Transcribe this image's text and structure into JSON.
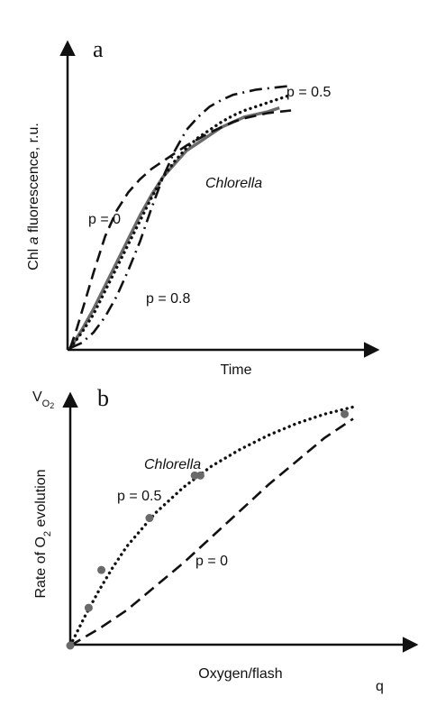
{
  "chart_data": [
    {
      "panel": "a",
      "type": "line",
      "xlabel": "Time",
      "ylabel": "Chl a fluorescence, r.u.",
      "ylabel_parts": [
        {
          "text": "Chl ",
          "style": "normal"
        },
        {
          "text": "a",
          "style": "italic"
        },
        {
          "text": " fluorescence, r.u.",
          "style": "normal"
        }
      ],
      "xlim": [
        0,
        10
      ],
      "ylim": [
        0,
        10
      ],
      "grid": false,
      "ticks": false,
      "series": [
        {
          "name": "Chlorella",
          "label": "Chlorella",
          "style": "solid",
          "color": "#6b6b6b",
          "x": [
            0,
            0.5,
            1,
            1.5,
            2,
            2.5,
            3,
            3.5,
            4,
            4.5,
            5,
            5.5,
            6,
            6.5,
            7,
            7.5,
            8,
            8.5,
            9
          ],
          "y": [
            0,
            0.7,
            1.5,
            2.4,
            3.3,
            4.2,
            5.1,
            5.9,
            6.6,
            7.1,
            7.6,
            7.9,
            8.2,
            8.5,
            8.7,
            8.9,
            9.0,
            9.1,
            9.25
          ]
        },
        {
          "name": "p = 0",
          "label": "p = 0",
          "style": "dashed",
          "color": "#111111",
          "x": [
            0,
            0.3,
            0.6,
            1,
            1.5,
            2,
            2.5,
            3,
            3.5,
            4,
            4.5,
            5,
            5.5,
            6,
            6.5,
            7,
            7.5,
            8,
            8.5,
            9,
            9.5
          ],
          "y": [
            0,
            0.8,
            1.7,
            2.9,
            4.3,
            5.3,
            6.0,
            6.5,
            6.9,
            7.2,
            7.5,
            7.8,
            8.05,
            8.3,
            8.5,
            8.7,
            8.85,
            8.95,
            9.05,
            9.1,
            9.15
          ]
        },
        {
          "name": "p = 0.5",
          "label": "p = 0.5",
          "style": "dotted",
          "color": "#111111",
          "x": [
            0,
            0.5,
            1,
            1.5,
            2,
            2.5,
            3,
            3.5,
            4,
            4.5,
            5,
            5.5,
            6,
            6.5,
            7,
            7.5,
            8,
            8.5,
            9,
            9.5
          ],
          "y": [
            0,
            0.6,
            1.3,
            2.2,
            3.1,
            4.0,
            4.9,
            5.8,
            6.6,
            7.2,
            7.7,
            8.1,
            8.4,
            8.7,
            8.95,
            9.15,
            9.3,
            9.45,
            9.6,
            9.75
          ]
        },
        {
          "name": "p = 0.8",
          "label": "p = 0.8",
          "style": "dashdot",
          "color": "#111111",
          "x": [
            0,
            0.5,
            1,
            1.5,
            2,
            2.5,
            3,
            3.5,
            4,
            4.5,
            5,
            5.5,
            6,
            6.5,
            7,
            7.5,
            8,
            8.5,
            9,
            9.5
          ],
          "y": [
            0,
            0.2,
            0.6,
            1.2,
            2.0,
            3.0,
            4.1,
            5.4,
            6.6,
            7.6,
            8.4,
            8.9,
            9.3,
            9.55,
            9.75,
            9.85,
            9.95,
            10.0,
            10.05,
            10.1
          ]
        }
      ]
    },
    {
      "panel": "b",
      "type": "line",
      "xlabel": "Oxygen/flash",
      "x_end_label": "q",
      "ylabel": "Rate of O2 evolution",
      "ylabel_parts": [
        {
          "text": "Rate of O",
          "style": "normal"
        },
        {
          "text": "2",
          "style": "sub"
        },
        {
          "text": " evolution",
          "style": "normal"
        }
      ],
      "y_end_label_parts": [
        {
          "text": "V",
          "style": "normal"
        },
        {
          "text": "O",
          "style": "sub"
        },
        {
          "text": "2",
          "style": "subsub"
        }
      ],
      "xlim": [
        0,
        10
      ],
      "ylim": [
        0,
        10
      ],
      "grid": false,
      "ticks": false,
      "series": [
        {
          "name": "p = 0.5",
          "label": "p = 0.5",
          "style": "dotted",
          "color": "#111111",
          "x": [
            0,
            0.5,
            1,
            1.5,
            2,
            3,
            4,
            5,
            6,
            7,
            8,
            9,
            10
          ],
          "y": [
            0,
            1.2,
            2.3,
            3.3,
            4.2,
            5.6,
            6.7,
            7.6,
            8.3,
            8.9,
            9.4,
            9.8,
            10.1
          ]
        },
        {
          "name": "p = 0",
          "label": "p = 0",
          "style": "dashed",
          "color": "#111111",
          "x": [
            0,
            1,
            2,
            3,
            4,
            5,
            6,
            7,
            8,
            9,
            10
          ],
          "y": [
            0,
            0.7,
            1.5,
            2.5,
            3.5,
            4.6,
            5.7,
            6.8,
            7.8,
            8.8,
            9.6
          ]
        },
        {
          "name": "Chlorella",
          "label": "Chlorella",
          "type": "scatter",
          "color": "#6a6a6a",
          "x": [
            0,
            0.65,
            1.1,
            2.8,
            4.4,
            4.6,
            9.7
          ],
          "y": [
            0,
            1.6,
            3.2,
            5.4,
            7.2,
            7.2,
            9.8
          ]
        }
      ]
    }
  ]
}
